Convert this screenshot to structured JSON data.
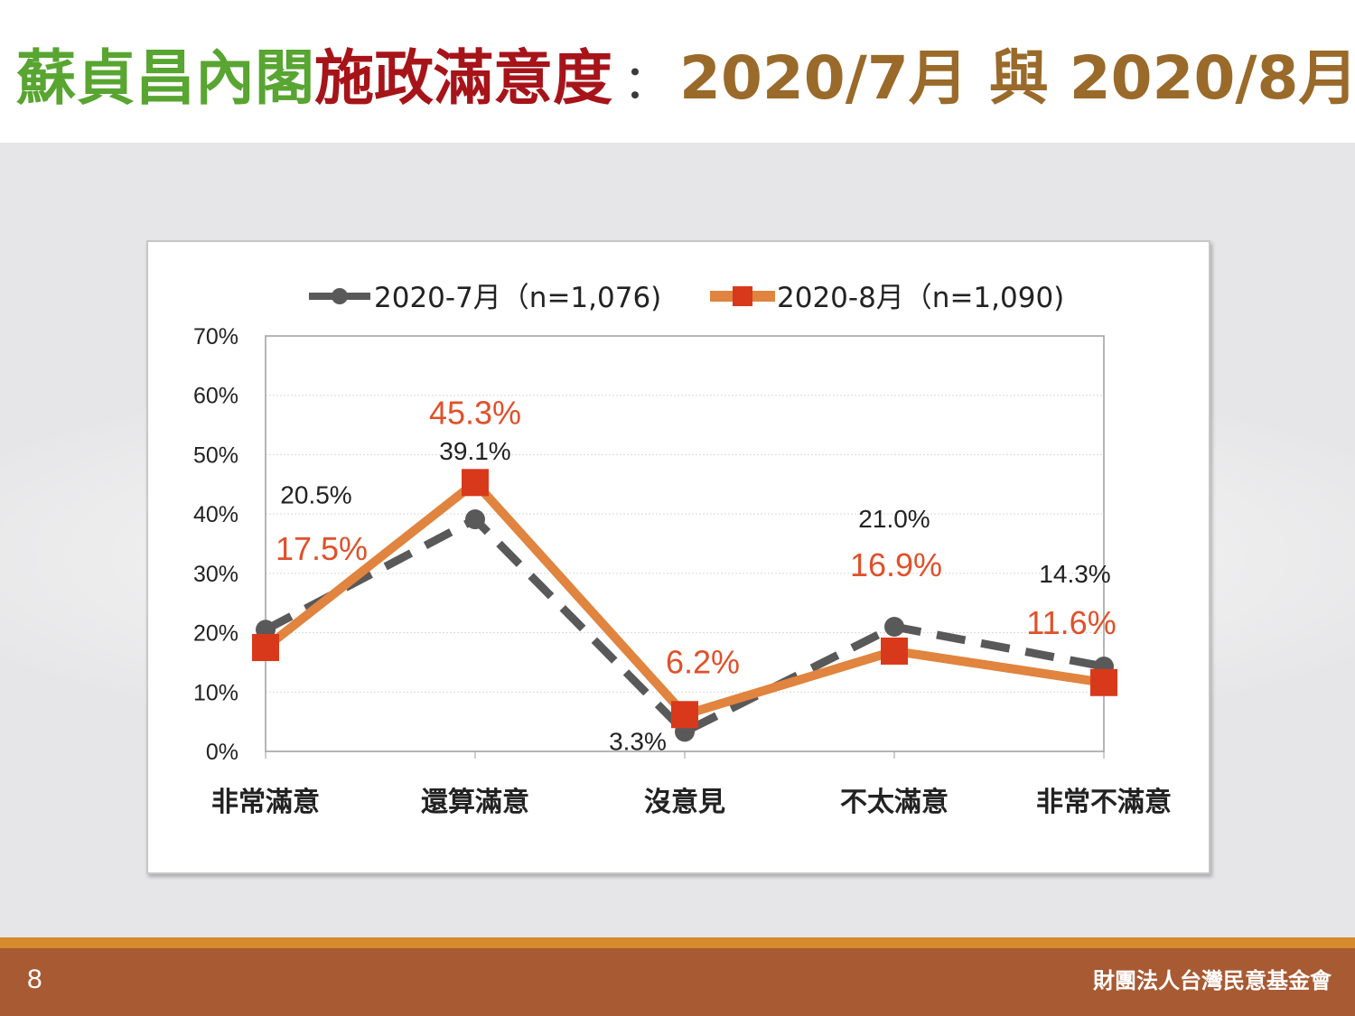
{
  "title": {
    "part_green": "蘇貞昌內閣",
    "part_red": "施政滿意度",
    "separator": "：",
    "part_brown": "2020/7月 與 2020/8月"
  },
  "colors": {
    "title_green": "#58a531",
    "title_red": "#a6141a",
    "title_brown": "#9a6a2a",
    "series_jul": "#595959",
    "series_aug": "#e0843f",
    "aug_marker": "#d9391b",
    "aug_label": "#e0502a",
    "footer": "#a85a33",
    "footer_stripe": "#d58a2c"
  },
  "chart_data": {
    "type": "line",
    "categories": [
      "非常滿意",
      "還算滿意",
      "沒意見",
      "不太滿意",
      "非常不滿意"
    ],
    "series": [
      {
        "name": "2020-7月（n=1,076)",
        "values": [
          20.5,
          39.1,
          3.3,
          21.0,
          14.3
        ],
        "labels": [
          "20.5%",
          "39.1%",
          "3.3%",
          "21.0%",
          "14.3%"
        ],
        "style": "dashed",
        "marker": "circle"
      },
      {
        "name": "2020-8月（n=1,090)",
        "values": [
          17.5,
          45.3,
          6.2,
          16.9,
          11.6
        ],
        "labels": [
          "17.5%",
          "45.3%",
          "6.2%",
          "16.9%",
          "11.6%"
        ],
        "style": "solid",
        "marker": "square"
      }
    ],
    "ylim": [
      0,
      70
    ],
    "yticks": [
      "0%",
      "10%",
      "20%",
      "30%",
      "40%",
      "50%",
      "60%",
      "70%"
    ],
    "grid": true,
    "legend_position": "top"
  },
  "footer": {
    "page_number": "8",
    "organization": "財團法人台灣民意基金會"
  }
}
